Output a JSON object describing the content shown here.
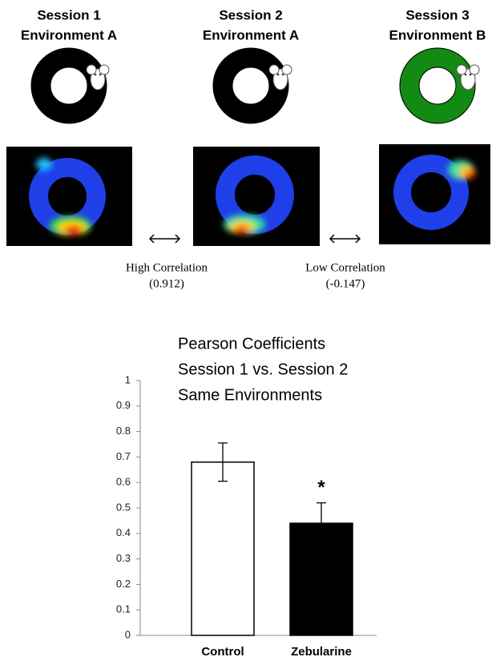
{
  "sessions": [
    {
      "title": "Session 1",
      "subtitle": "Environment A"
    },
    {
      "title": "Session 2",
      "subtitle": "Environment A"
    },
    {
      "title": "Session 3",
      "subtitle": "Environment B"
    }
  ],
  "correlations": [
    {
      "label": "High Correlation",
      "value": "(0.912)"
    },
    {
      "label": "Low Correlation",
      "value": "(-0.147)"
    }
  ],
  "chart_data": {
    "type": "bar",
    "title": [
      "Pearson Coefficients",
      "Session 1 vs. Session 2",
      "Same Environments"
    ],
    "categories": [
      "Control",
      "Zebularine"
    ],
    "values": [
      0.68,
      0.44
    ],
    "errors": [
      0.075,
      0.08
    ],
    "colors": [
      "#ffffff",
      "#000000"
    ],
    "ylim": [
      0,
      1
    ],
    "yticks": [
      0,
      0.1,
      0.2,
      0.3,
      0.4,
      0.5,
      0.6,
      0.7,
      0.8,
      0.9,
      1
    ],
    "annotations": [
      {
        "text": "*",
        "category": 1
      }
    ]
  }
}
